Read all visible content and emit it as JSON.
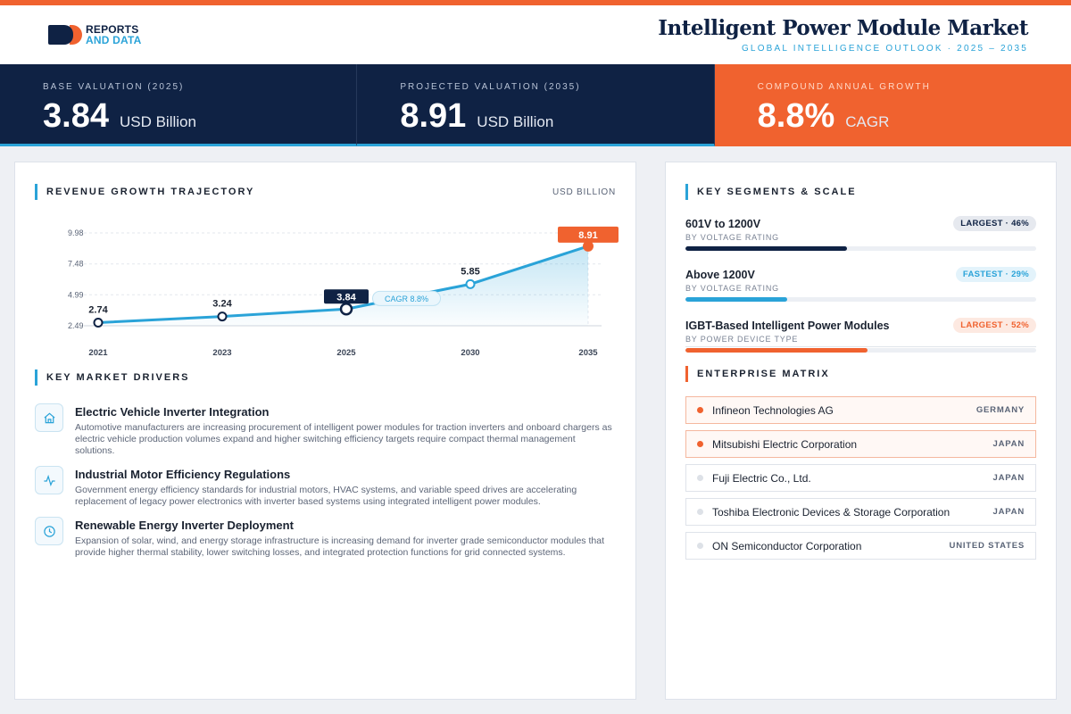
{
  "brand": {
    "line1": "REPORTS",
    "line2": "AND DATA"
  },
  "header": {
    "title": "Intelligent Power Module Market",
    "subtitle": "GLOBAL INTELLIGENCE OUTLOOK · 2025 – 2035"
  },
  "kpis": [
    {
      "label": "BASE VALUATION (2025)",
      "value": "3.84",
      "unit": "USD Billion"
    },
    {
      "label": "PROJECTED VALUATION (2035)",
      "value": "8.91",
      "unit": "USD Billion"
    },
    {
      "label": "COMPOUND ANNUAL GROWTH",
      "value": "8.8%",
      "unit": "CAGR"
    }
  ],
  "chart_section": {
    "title": "REVENUE GROWTH TRAJECTORY",
    "unit": "USD BILLION"
  },
  "chart_data": {
    "type": "area",
    "x": [
      "2021",
      "2023",
      "2025",
      "2030",
      "2035"
    ],
    "values": [
      2.74,
      3.24,
      3.84,
      5.85,
      8.91
    ],
    "value_labels": [
      "2.74",
      "3.24",
      "3.84",
      "5.85",
      "8.91"
    ],
    "ytick_labels": [
      "9.98",
      "7.48",
      "4.99",
      "2.49"
    ],
    "yticks": [
      9.98,
      7.48,
      4.99,
      2.49
    ],
    "ylim": [
      2.49,
      9.98
    ],
    "highlight_points": [
      "2025",
      "2035"
    ],
    "annotation": "CAGR 8.8%",
    "colors": {
      "line": "#2aa3d8",
      "base_marker": "#0f2244",
      "end_marker": "#f0622f"
    },
    "grid": true
  },
  "drivers_section": {
    "title": "KEY MARKET DRIVERS"
  },
  "drivers": [
    {
      "icon": "home-icon",
      "title": "Electric Vehicle Inverter Integration",
      "desc": "Automotive manufacturers are increasing procurement of intelligent power modules for traction inverters and onboard chargers as electric vehicle production volumes expand and higher switching efficiency targets require compact thermal management solutions."
    },
    {
      "icon": "activity-icon",
      "title": "Industrial Motor Efficiency Regulations",
      "desc": "Government energy efficiency standards for industrial motors, HVAC systems, and variable speed drives are accelerating replacement of legacy power electronics with inverter based systems using integrated intelligent power modules."
    },
    {
      "icon": "clock-icon",
      "title": "Renewable Energy Inverter Deployment",
      "desc": "Expansion of solar, wind, and energy storage infrastructure is increasing demand for inverter grade semiconductor modules that provide higher thermal stability, lower switching losses, and integrated protection functions for grid connected systems."
    }
  ],
  "segments_section": {
    "title": "KEY SEGMENTS & SCALE"
  },
  "segments": [
    {
      "name": "601V to 1200V",
      "category": "BY VOLTAGE RATING",
      "badge": "LARGEST · 46%",
      "share": 0.46,
      "color": "#0f2244"
    },
    {
      "name": "Above 1200V",
      "category": "BY VOLTAGE RATING",
      "badge": "FASTEST · 29%",
      "share": 0.29,
      "color": "#2aa3d8"
    },
    {
      "name": "IGBT-Based Intelligent Power Modules",
      "category": "BY POWER DEVICE TYPE",
      "badge": "LARGEST · 52%",
      "share": 0.52,
      "color": "#f0622f"
    }
  ],
  "matrix_section": {
    "title": "ENTERPRISE MATRIX"
  },
  "companies": [
    {
      "name": "Infineon Technologies AG",
      "country": "GERMANY",
      "highlight": true
    },
    {
      "name": "Mitsubishi Electric Corporation",
      "country": "JAPAN",
      "highlight": true
    },
    {
      "name": "Fuji Electric Co., Ltd.",
      "country": "JAPAN",
      "highlight": false
    },
    {
      "name": "Toshiba Electronic Devices & Storage Corporation",
      "country": "JAPAN",
      "highlight": false
    },
    {
      "name": "ON Semiconductor Corporation",
      "country": "UNITED STATES",
      "highlight": false
    }
  ]
}
